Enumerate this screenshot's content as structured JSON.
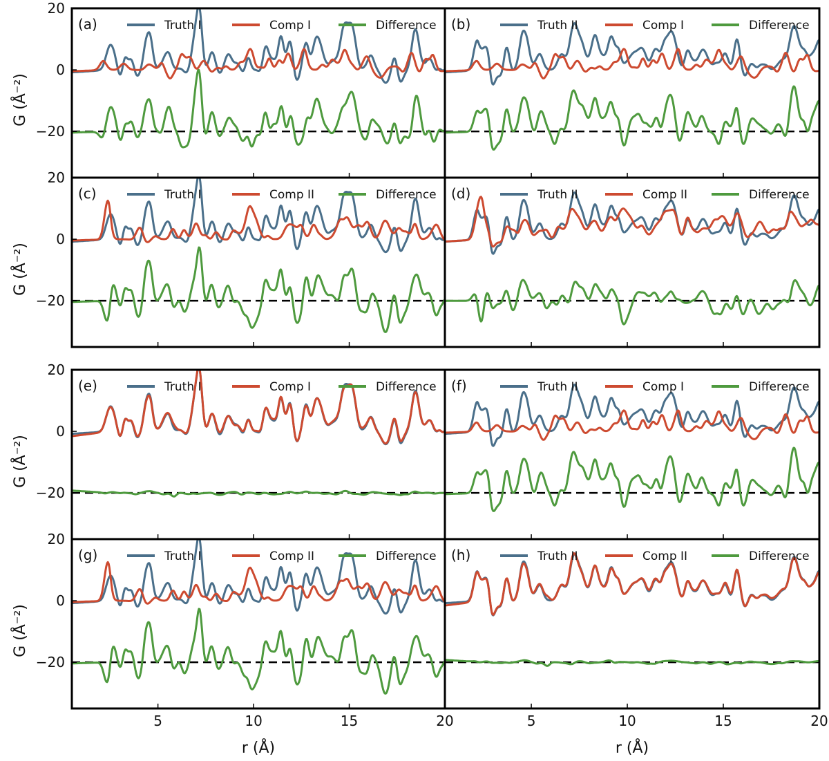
{
  "colors": {
    "truth": "#4a6f8a",
    "comp": "#cd4a30",
    "difference": "#4e9a3e",
    "baseline": "#000000"
  },
  "axes": {
    "ylabel": "G (Å⁻²)",
    "xlabel": "r (Å)",
    "y_ticks": [
      "20",
      "0",
      "−20"
    ],
    "x_ticks": [
      "5",
      "10",
      "15",
      "20"
    ]
  },
  "chart_data": [
    {
      "panel": "(a)",
      "type": "line",
      "xlim": [
        0.5,
        20
      ],
      "ylim": [
        -35,
        20
      ],
      "xlabel": "",
      "ylabel": "G (Å⁻²)",
      "legend_position": "top",
      "series": [
        {
          "name": "Truth I",
          "color": "#4a6f8a",
          "offset": 0
        },
        {
          "name": "Comp I",
          "color": "#cd4a30",
          "offset": 0
        },
        {
          "name": "Difference",
          "color": "#4e9a3e",
          "offset": -20
        }
      ],
      "baseline": -20,
      "fit": "poor"
    },
    {
      "panel": "(b)",
      "type": "line",
      "xlim": [
        0.5,
        20
      ],
      "ylim": [
        -35,
        20
      ],
      "xlabel": "",
      "ylabel": "",
      "legend_position": "top",
      "series": [
        {
          "name": "Truth II",
          "color": "#4a6f8a",
          "offset": 0
        },
        {
          "name": "Comp I",
          "color": "#cd4a30",
          "offset": 0
        },
        {
          "name": "Difference",
          "color": "#4e9a3e",
          "offset": -20
        }
      ],
      "baseline": -20,
      "fit": "poor"
    },
    {
      "panel": "(c)",
      "type": "line",
      "xlim": [
        0.5,
        20
      ],
      "ylim": [
        -35,
        20
      ],
      "xlabel": "",
      "ylabel": "G (Å⁻²)",
      "legend_position": "top",
      "series": [
        {
          "name": "Truth I",
          "color": "#4a6f8a",
          "offset": 0
        },
        {
          "name": "Comp II",
          "color": "#cd4a30",
          "offset": 0
        },
        {
          "name": "Difference",
          "color": "#4e9a3e",
          "offset": -20
        }
      ],
      "baseline": -20,
      "fit": "poor"
    },
    {
      "panel": "(d)",
      "type": "line",
      "xlim": [
        0.5,
        20
      ],
      "ylim": [
        -35,
        20
      ],
      "xlabel": "",
      "ylabel": "",
      "legend_position": "top",
      "series": [
        {
          "name": "Truth II",
          "color": "#4a6f8a",
          "offset": 0
        },
        {
          "name": "Comp II",
          "color": "#cd4a30",
          "offset": 0
        },
        {
          "name": "Difference",
          "color": "#4e9a3e",
          "offset": -20
        }
      ],
      "baseline": -20,
      "fit": "partial"
    },
    {
      "panel": "(e)",
      "type": "line",
      "xlim": [
        0.5,
        20
      ],
      "ylim": [
        -35,
        20
      ],
      "xlabel": "",
      "ylabel": "G (Å⁻²)",
      "legend_position": "top",
      "series": [
        {
          "name": "Truth I",
          "color": "#4a6f8a",
          "offset": 0
        },
        {
          "name": "Comp I",
          "color": "#cd4a30",
          "offset": 0
        },
        {
          "name": "Difference",
          "color": "#4e9a3e",
          "offset": -20
        }
      ],
      "baseline": -20,
      "fit": "good"
    },
    {
      "panel": "(f)",
      "type": "line",
      "xlim": [
        0.5,
        20
      ],
      "ylim": [
        -35,
        20
      ],
      "xlabel": "",
      "ylabel": "",
      "legend_position": "top",
      "series": [
        {
          "name": "Truth II",
          "color": "#4a6f8a",
          "offset": 0
        },
        {
          "name": "Comp I",
          "color": "#cd4a30",
          "offset": 0
        },
        {
          "name": "Difference",
          "color": "#4e9a3e",
          "offset": -20
        }
      ],
      "baseline": -20,
      "fit": "poor"
    },
    {
      "panel": "(g)",
      "type": "line",
      "xlim": [
        0.5,
        20
      ],
      "ylim": [
        -35,
        20
      ],
      "xlabel": "r (Å)",
      "ylabel": "G (Å⁻²)",
      "legend_position": "top",
      "series": [
        {
          "name": "Truth I",
          "color": "#4a6f8a",
          "offset": 0
        },
        {
          "name": "Comp II",
          "color": "#cd4a30",
          "offset": 0
        },
        {
          "name": "Difference",
          "color": "#4e9a3e",
          "offset": -20
        }
      ],
      "baseline": -20,
      "fit": "poor"
    },
    {
      "panel": "(h)",
      "type": "line",
      "xlim": [
        0.5,
        20
      ],
      "ylim": [
        -35,
        20
      ],
      "xlabel": "r (Å)",
      "ylabel": "",
      "legend_position": "top",
      "series": [
        {
          "name": "Truth II",
          "color": "#4a6f8a",
          "offset": 0
        },
        {
          "name": "Comp II",
          "color": "#cd4a30",
          "offset": 0
        },
        {
          "name": "Difference",
          "color": "#4e9a3e",
          "offset": -20
        }
      ],
      "baseline": -20,
      "fit": "good"
    }
  ]
}
